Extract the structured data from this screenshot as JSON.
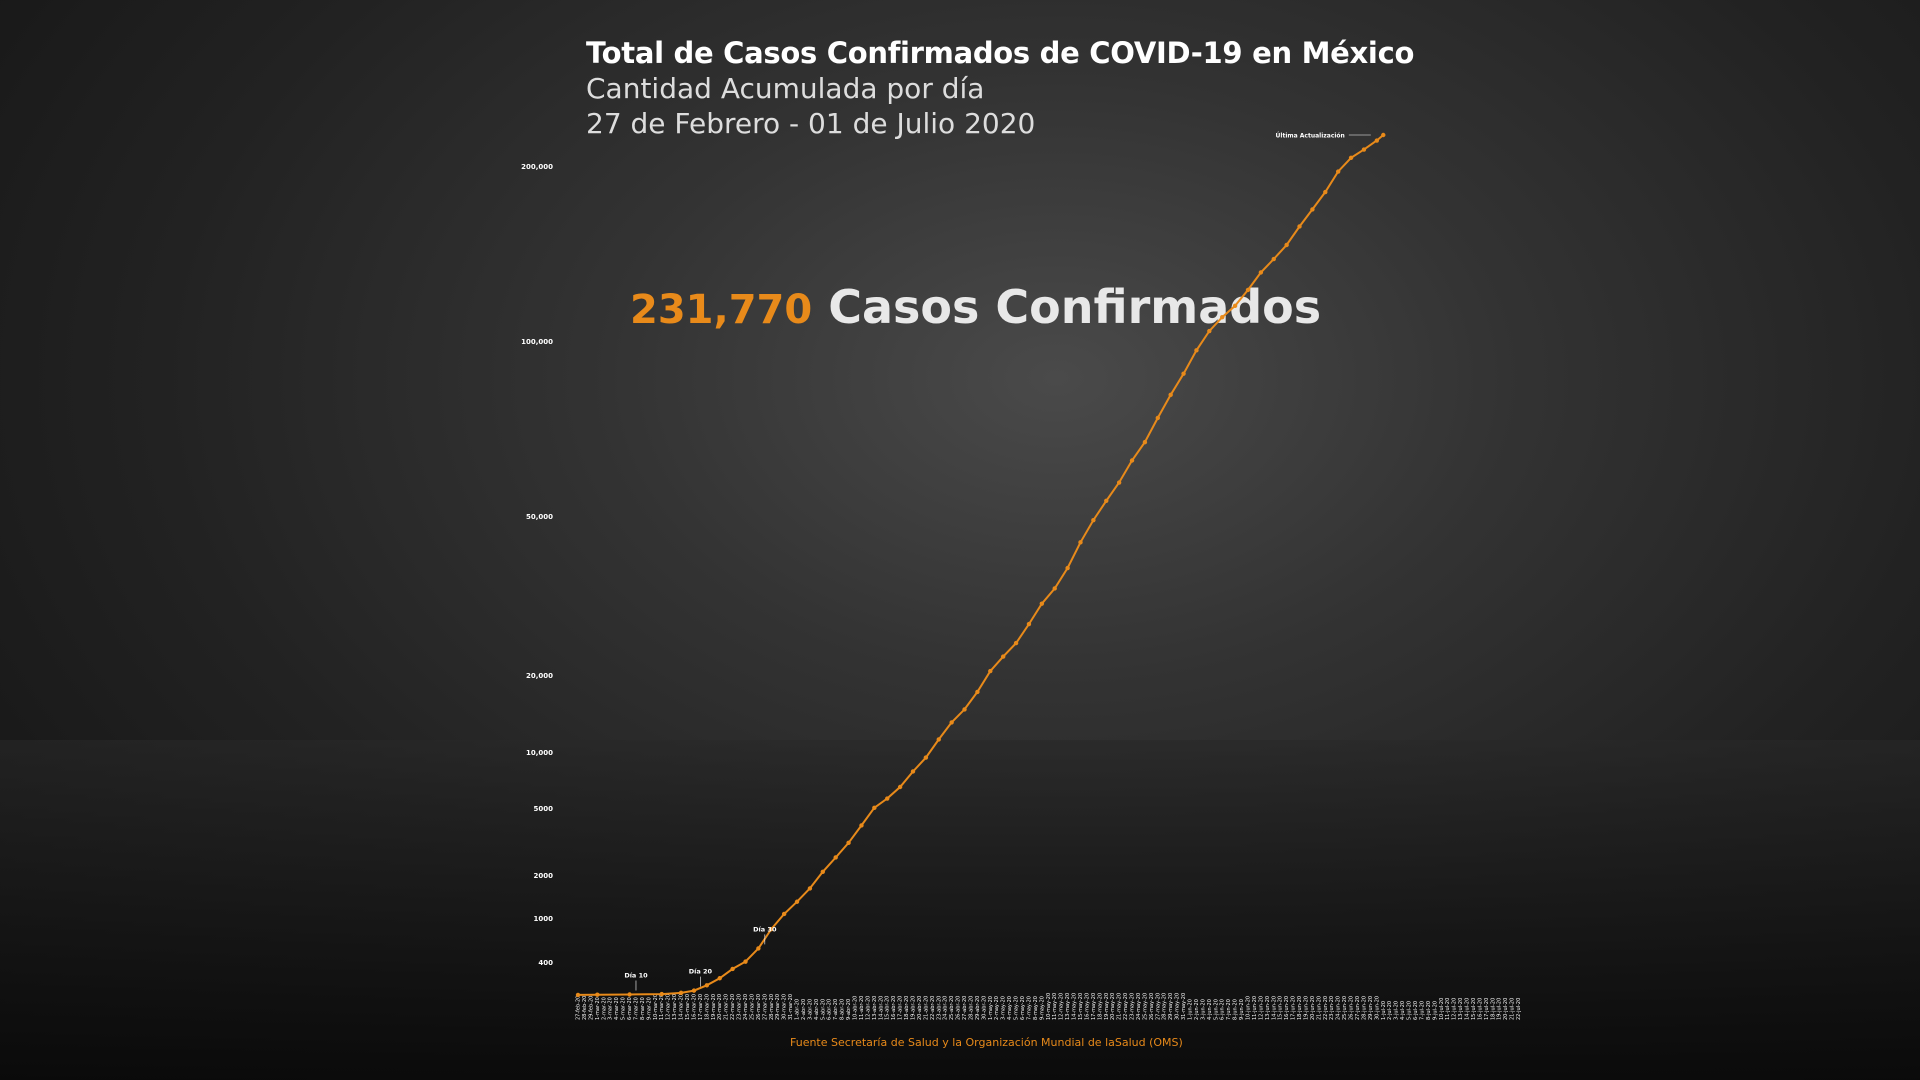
{
  "header": {
    "title": "Total de Casos Confirmados de COVID-19 en México",
    "subtitle": "Cantidad Acumulada por día",
    "date_range": "27 de Febrero - 01 de Julio 2020"
  },
  "headline": {
    "count": "231,770",
    "label": "Casos Confirmados"
  },
  "source": "Fuente Secretaría de Salud y la Organización Mundial de laSalud (OMS)",
  "colors": {
    "accent": "#e88a1a",
    "text": "#ffffff"
  },
  "chart_data": {
    "type": "line",
    "title": "Total de Casos Confirmados de COVID-19 en México",
    "xlabel": "",
    "ylabel": "",
    "y_scale": "piecewise",
    "y_ticks": [
      400,
      1000,
      2000,
      5000,
      10000,
      20000,
      50000,
      100000,
      200000
    ],
    "y_tick_labels": [
      "400",
      "1000",
      "2000",
      "5000",
      "10,000",
      "20,000",
      "50,000",
      "100,000",
      "200,000"
    ],
    "x_range": [
      "2020-02-27",
      "2020-07-01"
    ],
    "x_tick_labels_note": "daily date labels, too small to read",
    "grid": false,
    "annotations": [
      {
        "label": "Día 10",
        "date": "2020-03-07"
      },
      {
        "label": "Día 20",
        "date": "2020-03-17"
      },
      {
        "label": "Día 30",
        "date": "2020-03-27"
      },
      {
        "label": "Última Actualización",
        "date": "2020-06-30",
        "value": 231770
      }
    ],
    "series": [
      {
        "values": [
          {
            "date": "2020-02-27",
            "y": 1
          },
          {
            "date": "2020-03-01",
            "y": 4
          },
          {
            "date": "2020-03-06",
            "y": 6
          },
          {
            "date": "2020-03-11",
            "y": 11
          },
          {
            "date": "2020-03-14",
            "y": 26
          },
          {
            "date": "2020-03-16",
            "y": 53
          },
          {
            "date": "2020-03-18",
            "y": 118
          },
          {
            "date": "2020-03-20",
            "y": 203
          },
          {
            "date": "2020-03-22",
            "y": 316
          },
          {
            "date": "2020-03-24",
            "y": 405
          },
          {
            "date": "2020-03-26",
            "y": 585
          },
          {
            "date": "2020-03-28",
            "y": 848
          },
          {
            "date": "2020-03-30",
            "y": 1094
          },
          {
            "date": "2020-04-01",
            "y": 1378
          },
          {
            "date": "2020-04-03",
            "y": 1688
          },
          {
            "date": "2020-04-05",
            "y": 2143
          },
          {
            "date": "2020-04-07",
            "y": 2785
          },
          {
            "date": "2020-04-09",
            "y": 3441
          },
          {
            "date": "2020-04-11",
            "y": 4219
          },
          {
            "date": "2020-04-13",
            "y": 5014
          },
          {
            "date": "2020-04-15",
            "y": 5847
          },
          {
            "date": "2020-04-17",
            "y": 6875
          },
          {
            "date": "2020-04-19",
            "y": 8261
          },
          {
            "date": "2020-04-21",
            "y": 9501
          },
          {
            "date": "2020-04-23",
            "y": 11633
          },
          {
            "date": "2020-04-25",
            "y": 13842
          },
          {
            "date": "2020-04-27",
            "y": 15529
          },
          {
            "date": "2020-04-29",
            "y": 17799
          },
          {
            "date": "2020-05-01",
            "y": 20739
          },
          {
            "date": "2020-05-03",
            "y": 23471
          },
          {
            "date": "2020-05-05",
            "y": 26025
          },
          {
            "date": "2020-05-07",
            "y": 29616
          },
          {
            "date": "2020-05-09",
            "y": 33460
          },
          {
            "date": "2020-05-11",
            "y": 36327
          },
          {
            "date": "2020-05-13",
            "y": 40186
          },
          {
            "date": "2020-05-15",
            "y": 45032
          },
          {
            "date": "2020-05-17",
            "y": 49219
          },
          {
            "date": "2020-05-19",
            "y": 54346
          },
          {
            "date": "2020-05-21",
            "y": 59567
          },
          {
            "date": "2020-05-23",
            "y": 65856
          },
          {
            "date": "2020-05-25",
            "y": 71105
          },
          {
            "date": "2020-05-27",
            "y": 78023
          },
          {
            "date": "2020-05-29",
            "y": 84627
          },
          {
            "date": "2020-05-31",
            "y": 90664
          },
          {
            "date": "2020-06-02",
            "y": 97326
          },
          {
            "date": "2020-06-04",
            "y": 105680
          },
          {
            "date": "2020-06-06",
            "y": 113619
          },
          {
            "date": "2020-06-08",
            "y": 120102
          },
          {
            "date": "2020-06-10",
            "y": 129184
          },
          {
            "date": "2020-06-12",
            "y": 139196
          },
          {
            "date": "2020-06-14",
            "y": 146837
          },
          {
            "date": "2020-06-16",
            "y": 154863
          },
          {
            "date": "2020-06-18",
            "y": 165455
          },
          {
            "date": "2020-06-20",
            "y": 175202
          },
          {
            "date": "2020-06-22",
            "y": 185122
          },
          {
            "date": "2020-06-24",
            "y": 196847
          },
          {
            "date": "2020-06-26",
            "y": 208392
          },
          {
            "date": "2020-06-28",
            "y": 216852
          },
          {
            "date": "2020-06-30",
            "y": 226089
          },
          {
            "date": "2020-07-01",
            "y": 231770
          }
        ]
      }
    ]
  }
}
